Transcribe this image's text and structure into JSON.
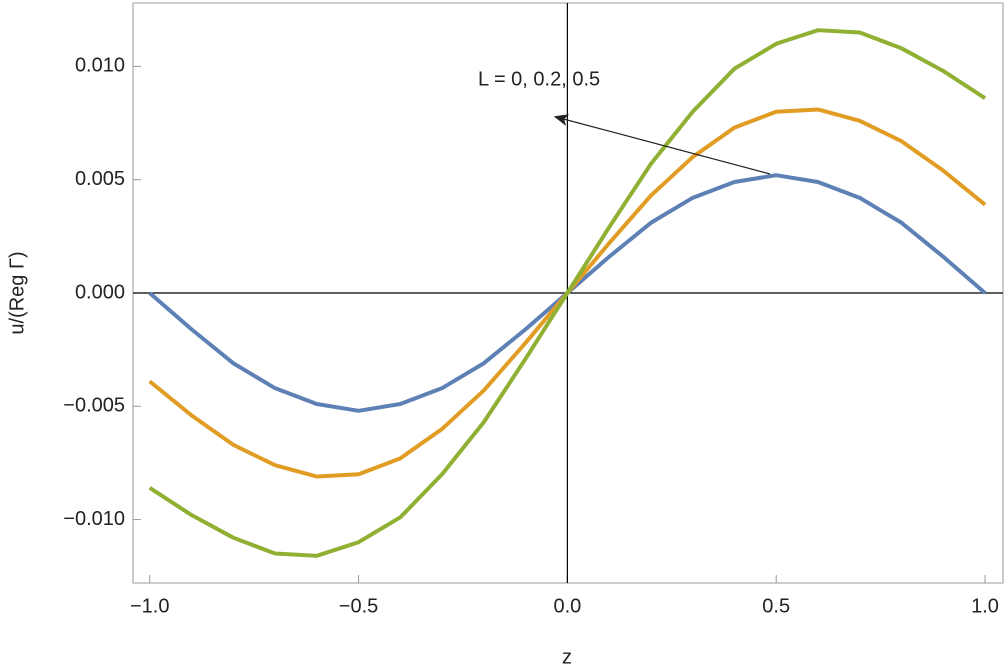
{
  "chart_data": {
    "type": "line",
    "xlabel": "z",
    "ylabel": "u/(Reg Γ)",
    "annotation": "L = 0, 0.2, 0.5",
    "x": [
      -1,
      -0.9,
      -0.8,
      -0.7,
      -0.6,
      -0.5,
      -0.4,
      -0.3,
      -0.2,
      -0.1,
      0,
      0.1,
      0.2,
      0.3,
      0.4,
      0.5,
      0.6,
      0.7,
      0.8,
      0.9,
      1
    ],
    "series": [
      {
        "color": "#5e81b5",
        "values": [
          0,
          -0.0016,
          -0.0031,
          -0.0042,
          -0.0049,
          -0.0052,
          -0.0049,
          -0.0042,
          -0.0031,
          -0.0016,
          0,
          0.0016,
          0.0031,
          0.0042,
          0.0049,
          0.0052,
          0.0049,
          0.0042,
          0.0031,
          0.0016,
          0
        ]
      },
      {
        "color": "#e19c24",
        "values": [
          -0.0039,
          -0.0054,
          -0.0067,
          -0.0076,
          -0.0081,
          -0.008,
          -0.0073,
          -0.006,
          -0.0043,
          -0.0022,
          0,
          0.0022,
          0.0043,
          0.006,
          0.0073,
          0.008,
          0.0081,
          0.0076,
          0.0067,
          0.0054,
          0.0039
        ]
      },
      {
        "color": "#8fb032",
        "values": [
          -0.0086,
          -0.0098,
          -0.0108,
          -0.0115,
          -0.0116,
          -0.011,
          -0.0099,
          -0.008,
          -0.0057,
          -0.0029,
          0,
          0.0029,
          0.0057,
          0.008,
          0.0099,
          0.011,
          0.0116,
          0.0115,
          0.0108,
          0.0098,
          0.0086
        ]
      }
    ],
    "xlim": [
      -1.04,
      1.043
    ],
    "ylim": [
      -0.0128,
      0.0128
    ],
    "xticks": [
      {
        "value": -1,
        "label": "−1.0"
      },
      {
        "value": -0.5,
        "label": "−0.5"
      },
      {
        "value": 0,
        "label": "0.0"
      },
      {
        "value": 0.5,
        "label": "0.5"
      },
      {
        "value": 1,
        "label": "1.0"
      }
    ],
    "yticks": [
      {
        "value": -0.01,
        "label": "−0.010"
      },
      {
        "value": -0.005,
        "label": "−0.005"
      },
      {
        "value": 0,
        "label": "0.000"
      },
      {
        "value": 0.005,
        "label": "0.005"
      },
      {
        "value": 0.01,
        "label": "0.010"
      }
    ]
  }
}
